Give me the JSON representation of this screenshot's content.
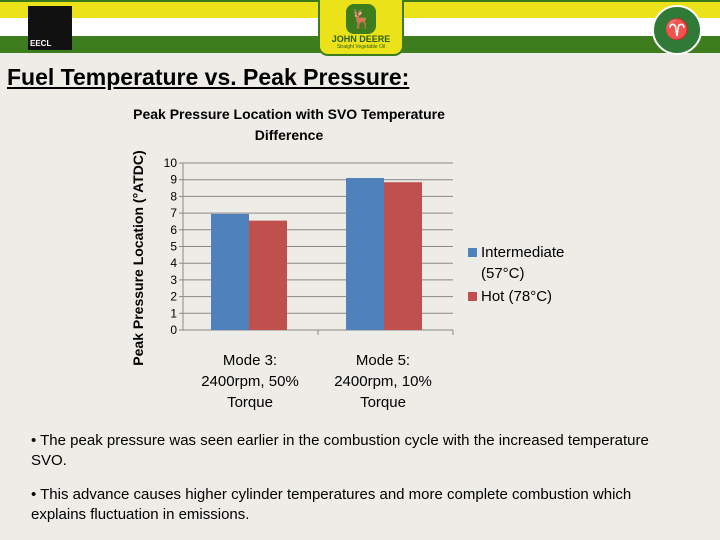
{
  "header": {
    "left_logo": "EECL",
    "center_logo_line1": "JOHN DEERE",
    "center_logo_line2": "Straight Vegetable Oil",
    "right_logo": "ram-logo"
  },
  "slide_title": "Fuel Temperature vs. Peak Pressure:",
  "chart_data": {
    "type": "bar",
    "title": "Peak Pressure Location with SVO Temperature Difference",
    "ylabel": "Peak Pressure Location (°ATDC)",
    "xlabel": "",
    "ylim": [
      0,
      10
    ],
    "yticks": [
      "0",
      "1",
      "2",
      "3",
      "4",
      "5",
      "6",
      "7",
      "8",
      "9",
      "10"
    ],
    "categories": [
      "Mode 3: 2400rpm, 50% Torque",
      "Mode 5: 2400rpm, 10% Torque"
    ],
    "series": [
      {
        "name": "Intermediate (57°C)",
        "color": "#4f81bd",
        "values": [
          6.95,
          9.1
        ]
      },
      {
        "name": "Hot (78°C)",
        "color": "#c0504d",
        "values": [
          6.55,
          8.85
        ]
      }
    ],
    "grid": true,
    "legend": "right"
  },
  "bullets": [
    "• The peak pressure was seen earlier in the combustion cycle with the increased temperature SVO.",
    "• This advance causes higher cylinder temperatures and more complete combustion which explains fluctuation in emissions."
  ]
}
